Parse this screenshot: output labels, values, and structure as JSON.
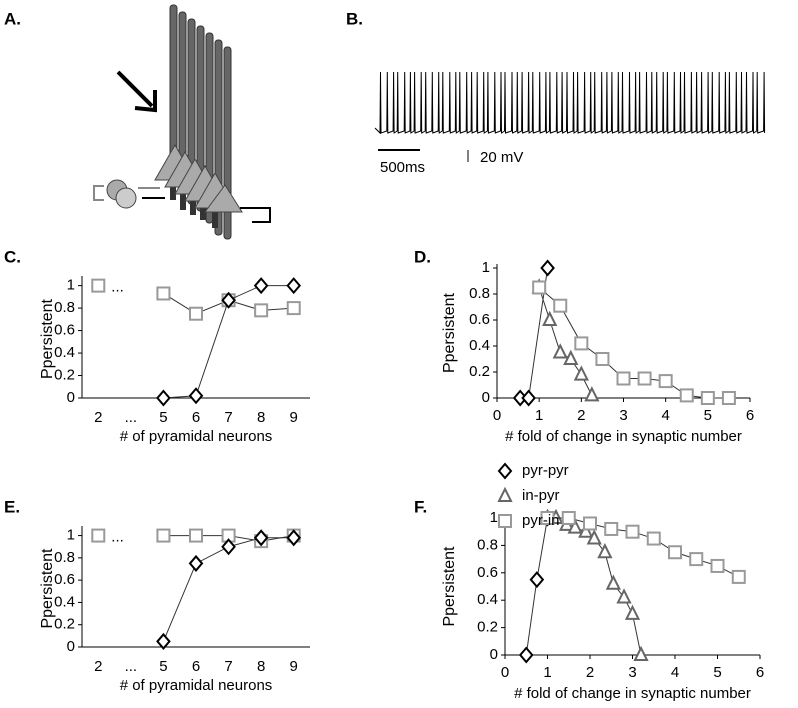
{
  "panel_labels": [
    "A.",
    "B.",
    "C.",
    "D.",
    "E.",
    "F."
  ],
  "trace_labels": {
    "time_scale": "500ms",
    "voltage_scale": "20 mV"
  },
  "chart_data": [
    {
      "type": "line",
      "ylabel": "Ppersistent",
      "xlabel": "# of pyramidal neurons",
      "annotation": "...",
      "categories": [
        "2",
        "...",
        "5",
        "6",
        "7",
        "8",
        "9"
      ],
      "ylim": [
        0,
        1.05
      ],
      "yticks": [
        0,
        0.2,
        0.4,
        0.6,
        0.8,
        1
      ],
      "series": [
        {
          "marker": "square",
          "color": "#999999",
          "values": [
            1,
            null,
            0.93,
            0.75,
            0.87,
            0.78,
            0.8
          ]
        },
        {
          "marker": "diamond",
          "color": "#000000",
          "values": [
            null,
            null,
            0,
            0.02,
            0.87,
            1,
            1
          ]
        }
      ]
    },
    {
      "type": "scatter-line",
      "ylabel": "Ppersistent",
      "xlabel": "# fold of change in synaptic number",
      "xlim": [
        0,
        6
      ],
      "xticks": [
        0,
        1,
        2,
        3,
        4,
        5,
        6
      ],
      "ylim": [
        0,
        1
      ],
      "yticks": [
        0,
        0.2,
        0.4,
        0.6,
        0.8,
        1
      ],
      "series": [
        {
          "marker": "diamond",
          "color": "#000000",
          "x": [
            0.55,
            0.75,
            1.2
          ],
          "values": [
            0,
            0,
            1
          ]
        },
        {
          "marker": "triangle",
          "color": "#666666",
          "x": [
            1,
            1.25,
            1.5,
            1.75,
            2,
            2.25
          ],
          "values": [
            0.85,
            0.6,
            0.35,
            0.3,
            0.18,
            0.02
          ]
        },
        {
          "marker": "square",
          "color": "#999999",
          "x": [
            1,
            1.5,
            2,
            2.5,
            3,
            3.5,
            4,
            4.5,
            5,
            5.5
          ],
          "values": [
            0.85,
            0.71,
            0.42,
            0.3,
            0.15,
            0.15,
            0.13,
            0.02,
            0,
            0
          ]
        }
      ]
    },
    {
      "type": "line",
      "ylabel": "Ppersistent",
      "xlabel": "# of pyramidal neurons",
      "annotation": "...",
      "categories": [
        "2",
        "...",
        "5",
        "6",
        "7",
        "8",
        "9"
      ],
      "ylim": [
        0,
        1.05
      ],
      "yticks": [
        0,
        0.2,
        0.4,
        0.6,
        0.8,
        1
      ],
      "series": [
        {
          "marker": "square",
          "color": "#999999",
          "values": [
            1,
            null,
            1,
            1,
            1,
            0.95,
            1
          ]
        },
        {
          "marker": "diamond",
          "color": "#000000",
          "values": [
            null,
            null,
            0.05,
            0.75,
            0.9,
            0.98,
            0.98
          ]
        }
      ]
    },
    {
      "type": "scatter-line",
      "ylabel": "Ppersistent",
      "xlabel": "# fold of change in synaptic number",
      "xlim": [
        0,
        6
      ],
      "xticks": [
        0,
        1,
        2,
        3,
        4,
        5,
        6
      ],
      "ylim": [
        0,
        1
      ],
      "yticks": [
        0,
        0.2,
        0.4,
        0.6,
        0.8,
        1
      ],
      "legend": "above",
      "series": [
        {
          "name": "pyr-pyr",
          "marker": "diamond",
          "color": "#000000",
          "x": [
            0.5,
            0.75,
            1
          ],
          "values": [
            0,
            0.55,
            1
          ]
        },
        {
          "name": "in-pyr",
          "marker": "triangle",
          "color": "#666666",
          "x": [
            1,
            1.2,
            1.45,
            1.65,
            1.9,
            2.1,
            2.35,
            2.55,
            2.8,
            3,
            3.2
          ],
          "values": [
            1,
            1,
            0.95,
            0.93,
            0.9,
            0.85,
            0.75,
            0.52,
            0.42,
            0.3,
            0
          ]
        },
        {
          "name": "pyr-in",
          "marker": "square",
          "color": "#999999",
          "x": [
            1,
            1.5,
            2,
            2.5,
            3,
            3.5,
            4,
            4.5,
            5,
            5.5
          ],
          "values": [
            1,
            1,
            0.96,
            0.92,
            0.9,
            0.85,
            0.75,
            0.7,
            0.65,
            0.57
          ]
        }
      ]
    }
  ]
}
